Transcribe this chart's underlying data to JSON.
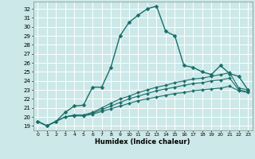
{
  "title": "",
  "xlabel": "Humidex (Indice chaleur)",
  "bg_color": "#cce8e8",
  "grid_color": "#ffffff",
  "line_color": "#1a6e6a",
  "xlim": [
    -0.5,
    23.5
  ],
  "ylim": [
    18.5,
    32.8
  ],
  "xticks": [
    0,
    1,
    2,
    3,
    4,
    5,
    6,
    7,
    8,
    9,
    10,
    11,
    12,
    13,
    14,
    15,
    16,
    17,
    18,
    19,
    20,
    21,
    22,
    23
  ],
  "yticks": [
    19,
    20,
    21,
    22,
    23,
    24,
    25,
    26,
    27,
    28,
    29,
    30,
    31,
    32
  ],
  "series": [
    {
      "x": [
        0,
        1,
        2,
        3,
        4,
        5,
        6,
        7,
        8,
        9,
        10,
        11,
        12,
        13,
        14,
        15,
        16,
        17,
        18,
        19,
        20,
        21,
        22,
        23
      ],
      "y": [
        19.5,
        19.0,
        19.5,
        20.5,
        21.2,
        21.3,
        23.3,
        23.3,
        25.5,
        29.0,
        30.5,
        31.3,
        32.0,
        32.3,
        29.5,
        29.0,
        25.7,
        25.5,
        25.0,
        24.7,
        25.7,
        24.8,
        24.5,
        23.0
      ],
      "marker": "D",
      "markersize": 2.5,
      "linewidth": 1.0
    },
    {
      "x": [
        0,
        1,
        2,
        3,
        4,
        5,
        6,
        7,
        8,
        9,
        10,
        11,
        12,
        13,
        14,
        15,
        16,
        17,
        18,
        19,
        20,
        21,
        22,
        23
      ],
      "y": [
        19.5,
        19.0,
        19.5,
        20.0,
        20.2,
        20.2,
        20.5,
        21.0,
        21.5,
        22.0,
        22.3,
        22.7,
        23.0,
        23.3,
        23.5,
        23.8,
        24.0,
        24.2,
        24.3,
        24.5,
        24.7,
        24.9,
        23.2,
        23.0
      ],
      "marker": "D",
      "markersize": 2.0,
      "linewidth": 0.8
    },
    {
      "x": [
        0,
        1,
        2,
        3,
        4,
        5,
        6,
        7,
        8,
        9,
        10,
        11,
        12,
        13,
        14,
        15,
        16,
        17,
        18,
        19,
        20,
        21,
        22,
        23
      ],
      "y": [
        19.5,
        19.0,
        19.5,
        20.0,
        20.2,
        20.2,
        20.4,
        20.8,
        21.2,
        21.6,
        22.0,
        22.3,
        22.6,
        22.9,
        23.1,
        23.3,
        23.5,
        23.7,
        23.8,
        24.0,
        24.1,
        24.3,
        23.0,
        22.8
      ],
      "marker": "D",
      "markersize": 2.0,
      "linewidth": 0.8
    },
    {
      "x": [
        0,
        1,
        2,
        3,
        4,
        5,
        6,
        7,
        8,
        9,
        10,
        11,
        12,
        13,
        14,
        15,
        16,
        17,
        18,
        19,
        20,
        21,
        22,
        23
      ],
      "y": [
        19.5,
        19.0,
        19.5,
        20.0,
        20.1,
        20.1,
        20.3,
        20.6,
        20.9,
        21.2,
        21.5,
        21.8,
        22.0,
        22.2,
        22.4,
        22.6,
        22.7,
        22.9,
        23.0,
        23.1,
        23.2,
        23.4,
        22.9,
        22.7
      ],
      "marker": "D",
      "markersize": 2.0,
      "linewidth": 0.8
    }
  ]
}
